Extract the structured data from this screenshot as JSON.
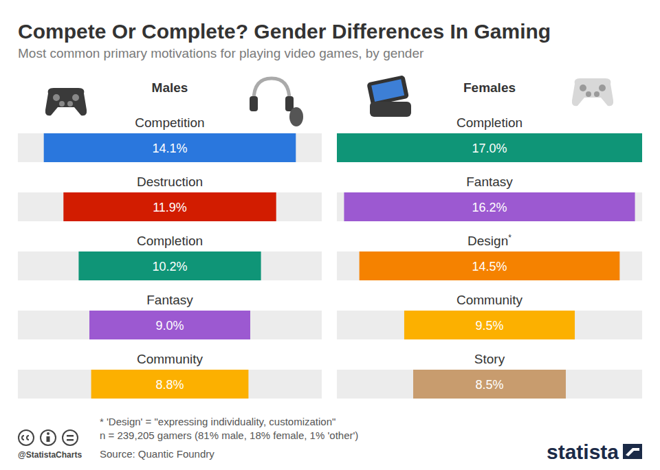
{
  "title": "Compete Or Complete? Gender Differences In Gaming",
  "subtitle": "Most common primary motivations for playing video games, by gender",
  "notes": [
    "* 'Design' = \"expressing individuality, customization\"",
    "n = 239,205 gamers (81% male, 18% female, 1% 'other')"
  ],
  "source": "Source: Quantic Foundry",
  "credit": "@StatistaCharts",
  "brand": "statista",
  "chart_data": [
    {
      "type": "bar",
      "orientation": "horizontal",
      "title": "Males",
      "categories": [
        "Competition",
        "Destruction",
        "Completion",
        "Fantasy",
        "Community"
      ],
      "values": [
        14.1,
        11.9,
        10.2,
        9.0,
        8.8
      ],
      "value_labels": [
        "14.1%",
        "11.9%",
        "10.2%",
        "9.0%",
        "8.8%"
      ],
      "colors": [
        "#2a77dd",
        "#d21c00",
        "#0f9577",
        "#9c59d1",
        "#fcb000"
      ],
      "xlim": [
        0,
        17
      ],
      "tick_labels": false,
      "data_labels": true
    },
    {
      "type": "bar",
      "orientation": "horizontal",
      "title": "Females",
      "categories": [
        "Completion",
        "Fantasy",
        "Design*",
        "Community",
        "Story"
      ],
      "values": [
        17.0,
        16.2,
        14.5,
        9.5,
        8.5
      ],
      "value_labels": [
        "17.0%",
        "16.2%",
        "14.5%",
        "9.5%",
        "8.5%"
      ],
      "colors": [
        "#0f9577",
        "#9c59d1",
        "#f58200",
        "#fcb000",
        "#c89c6e"
      ],
      "xlim": [
        0,
        17
      ],
      "tick_labels": false,
      "data_labels": true
    }
  ]
}
